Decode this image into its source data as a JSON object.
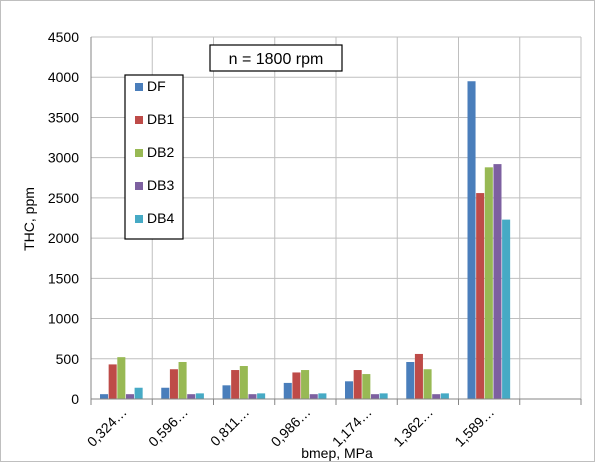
{
  "chart_data": {
    "type": "bar",
    "annotation": "n = 1800 rpm",
    "title": "",
    "xlabel": "bmep, MPa",
    "ylabel": "THC, ppm",
    "ylim": [
      0,
      4500
    ],
    "yticks": [
      "0",
      "500",
      "1000",
      "1500",
      "2000",
      "2500",
      "3000",
      "3500",
      "4000",
      "4500"
    ],
    "categories": [
      "0,324…",
      "0,596…",
      "0,811…",
      "0,986…",
      "1,174…",
      "1,362…",
      "1,589…"
    ],
    "grid": true,
    "legend_placement": "top-left",
    "series": [
      {
        "name": "DF",
        "color": "#4a7ebb",
        "values": [
          60,
          140,
          170,
          200,
          220,
          460,
          3950
        ]
      },
      {
        "name": "DB1",
        "color": "#be4b48",
        "values": [
          430,
          370,
          360,
          330,
          360,
          560,
          2560
        ]
      },
      {
        "name": "DB2",
        "color": "#98b954",
        "values": [
          520,
          460,
          410,
          360,
          310,
          370,
          2880
        ]
      },
      {
        "name": "DB3",
        "color": "#7d60a0",
        "values": [
          60,
          60,
          60,
          60,
          60,
          60,
          2920
        ]
      },
      {
        "name": "DB4",
        "color": "#46aac5",
        "values": [
          140,
          70,
          70,
          70,
          70,
          70,
          2230
        ]
      }
    ]
  }
}
